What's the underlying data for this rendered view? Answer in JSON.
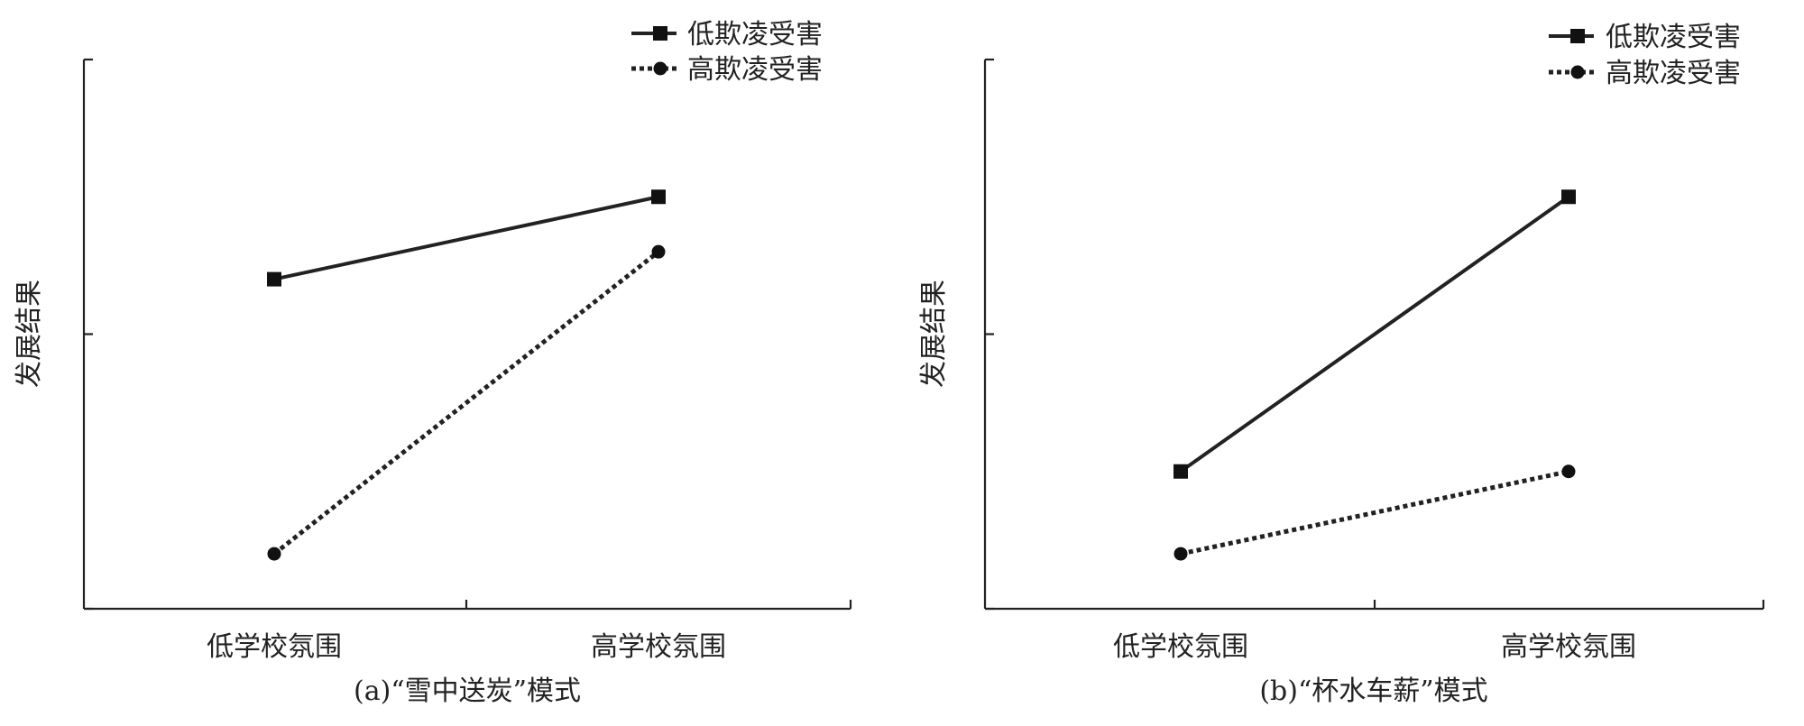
{
  "chart_data": [
    {
      "type": "line",
      "caption": "(a)“雪中送炭”模式",
      "categories": [
        "低学校氛围",
        "高学校氛围"
      ],
      "ylabel": "发展结果",
      "xlabel": "",
      "ylim": [
        0,
        100
      ],
      "y_ticks": [
        0,
        50,
        100
      ],
      "grid": false,
      "legend_position": "top-right",
      "series": [
        {
          "name": "低欺凌受害",
          "style": "solid",
          "marker": "square",
          "values": [
            60,
            75
          ]
        },
        {
          "name": "高欺凌受害",
          "style": "dotted",
          "marker": "circle",
          "values": [
            10,
            65
          ]
        }
      ]
    },
    {
      "type": "line",
      "caption": "(b)“杯水车薪”模式",
      "categories": [
        "低学校氛围",
        "高学校氛围"
      ],
      "ylabel": "发展结果",
      "xlabel": "",
      "ylim": [
        0,
        100
      ],
      "y_ticks": [
        0,
        50,
        100
      ],
      "grid": false,
      "legend_position": "top-right",
      "series": [
        {
          "name": "低欺凌受害",
          "style": "solid",
          "marker": "square",
          "values": [
            25,
            75
          ]
        },
        {
          "name": "高欺凌受害",
          "style": "dotted",
          "marker": "circle",
          "values": [
            10,
            25
          ]
        }
      ]
    }
  ]
}
